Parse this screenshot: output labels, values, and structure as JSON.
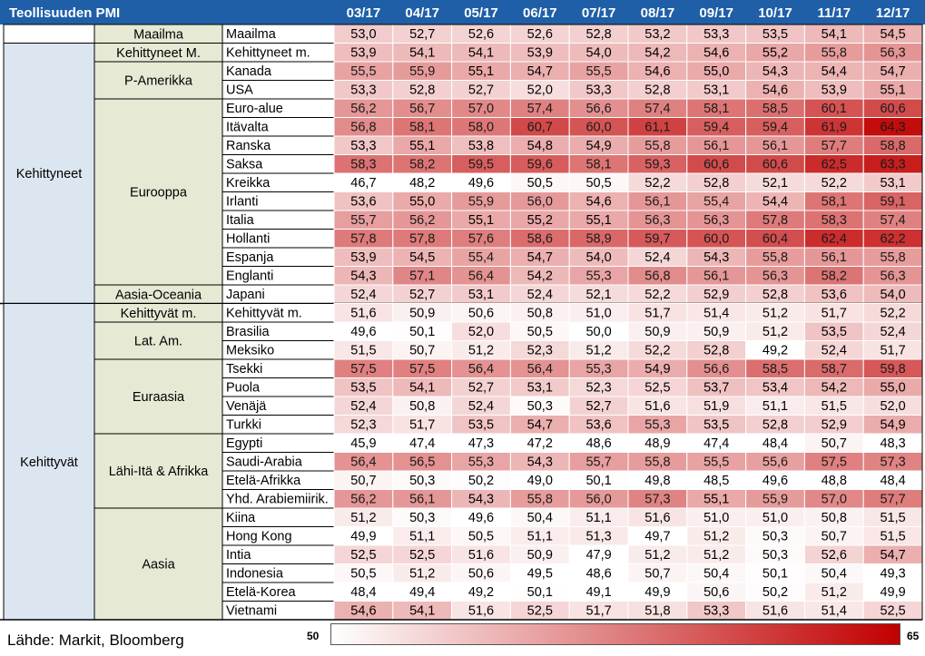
{
  "chart_data": {
    "type": "heatmap",
    "title": "Teollisuuden PMI",
    "columns": [
      "03/17",
      "04/17",
      "05/17",
      "06/17",
      "07/17",
      "08/17",
      "09/17",
      "10/17",
      "11/17",
      "12/17"
    ],
    "groups": [
      {
        "label": "Kehittyneet",
        "regions": [
          {
            "label": "Maailma",
            "rows": [
              {
                "name": "Maailma",
                "values": [
                  53.0,
                  52.7,
                  52.6,
                  52.6,
                  52.8,
                  53.2,
                  53.3,
                  53.5,
                  54.1,
                  54.5
                ]
              }
            ]
          },
          {
            "label": "Kehittyneet M.",
            "rows": [
              {
                "name": "Kehittyneet m.",
                "values": [
                  53.9,
                  54.1,
                  54.1,
                  53.9,
                  54.0,
                  54.2,
                  54.6,
                  55.2,
                  55.8,
                  56.3
                ]
              }
            ]
          },
          {
            "label": "P-Amerikka",
            "rows": [
              {
                "name": "Kanada",
                "values": [
                  55.5,
                  55.9,
                  55.1,
                  54.7,
                  55.5,
                  54.6,
                  55.0,
                  54.3,
                  54.4,
                  54.7
                ]
              },
              {
                "name": "USA",
                "values": [
                  53.3,
                  52.8,
                  52.7,
                  52.0,
                  53.3,
                  52.8,
                  53.1,
                  54.6,
                  53.9,
                  55.1
                ]
              }
            ]
          },
          {
            "label": "Eurooppa",
            "rows": [
              {
                "name": "Euro-alue",
                "values": [
                  56.2,
                  56.7,
                  57.0,
                  57.4,
                  56.6,
                  57.4,
                  58.1,
                  58.5,
                  60.1,
                  60.6
                ]
              },
              {
                "name": "Itävalta",
                "values": [
                  56.8,
                  58.1,
                  58.0,
                  60.7,
                  60.0,
                  61.1,
                  59.4,
                  59.4,
                  61.9,
                  64.3
                ]
              },
              {
                "name": "Ranska",
                "values": [
                  53.3,
                  55.1,
                  53.8,
                  54.8,
                  54.9,
                  55.8,
                  56.1,
                  56.1,
                  57.7,
                  58.8
                ]
              },
              {
                "name": "Saksa",
                "values": [
                  58.3,
                  58.2,
                  59.5,
                  59.6,
                  58.1,
                  59.3,
                  60.6,
                  60.6,
                  62.5,
                  63.3
                ]
              },
              {
                "name": "Kreikka",
                "values": [
                  46.7,
                  48.2,
                  49.6,
                  50.5,
                  50.5,
                  52.2,
                  52.8,
                  52.1,
                  52.2,
                  53.1
                ]
              },
              {
                "name": "Irlanti",
                "values": [
                  53.6,
                  55.0,
                  55.9,
                  56.0,
                  54.6,
                  56.1,
                  55.4,
                  54.4,
                  58.1,
                  59.1
                ]
              },
              {
                "name": "Italia",
                "values": [
                  55.7,
                  56.2,
                  55.1,
                  55.2,
                  55.1,
                  56.3,
                  56.3,
                  57.8,
                  58.3,
                  57.4
                ]
              },
              {
                "name": "Hollanti",
                "values": [
                  57.8,
                  57.8,
                  57.6,
                  58.6,
                  58.9,
                  59.7,
                  60.0,
                  60.4,
                  62.4,
                  62.2
                ]
              },
              {
                "name": "Espanja",
                "values": [
                  53.9,
                  54.5,
                  55.4,
                  54.7,
                  54.0,
                  52.4,
                  54.3,
                  55.8,
                  56.1,
                  55.8
                ]
              },
              {
                "name": "Englanti",
                "values": [
                  54.3,
                  57.1,
                  56.4,
                  54.2,
                  55.3,
                  56.8,
                  56.1,
                  56.3,
                  58.2,
                  56.3
                ]
              }
            ]
          },
          {
            "label": "Aasia-Oceania",
            "rows": [
              {
                "name": "Japani",
                "values": [
                  52.4,
                  52.7,
                  53.1,
                  52.4,
                  52.1,
                  52.2,
                  52.9,
                  52.8,
                  53.6,
                  54.0
                ]
              }
            ]
          }
        ]
      },
      {
        "label": "Kehittyvät",
        "regions": [
          {
            "label": "Kehittyvät m.",
            "rows": [
              {
                "name": "Kehittyvät m.",
                "values": [
                  51.6,
                  50.9,
                  50.6,
                  50.8,
                  51.0,
                  51.7,
                  51.4,
                  51.2,
                  51.7,
                  52.2
                ]
              }
            ]
          },
          {
            "label": "Lat. Am.",
            "rows": [
              {
                "name": "Brasilia",
                "values": [
                  49.6,
                  50.1,
                  52.0,
                  50.5,
                  50.0,
                  50.9,
                  50.9,
                  51.2,
                  53.5,
                  52.4
                ]
              },
              {
                "name": "Meksiko",
                "values": [
                  51.5,
                  50.7,
                  51.2,
                  52.3,
                  51.2,
                  52.2,
                  52.8,
                  49.2,
                  52.4,
                  51.7
                ]
              }
            ]
          },
          {
            "label": "Euraasia",
            "rows": [
              {
                "name": "Tsekki",
                "values": [
                  57.5,
                  57.5,
                  56.4,
                  56.4,
                  55.3,
                  54.9,
                  56.6,
                  58.5,
                  58.7,
                  59.8
                ]
              },
              {
                "name": "Puola",
                "values": [
                  53.5,
                  54.1,
                  52.7,
                  53.1,
                  52.3,
                  52.5,
                  53.7,
                  53.4,
                  54.2,
                  55.0
                ]
              },
              {
                "name": "Venäjä",
                "values": [
                  52.4,
                  50.8,
                  52.4,
                  50.3,
                  52.7,
                  51.6,
                  51.9,
                  51.1,
                  51.5,
                  52.0
                ]
              },
              {
                "name": "Turkki",
                "values": [
                  52.3,
                  51.7,
                  53.5,
                  54.7,
                  53.6,
                  55.3,
                  53.5,
                  52.8,
                  52.9,
                  54.9
                ]
              }
            ]
          },
          {
            "label": "Lähi-Itä & Afrikka",
            "rows": [
              {
                "name": "Egypti",
                "values": [
                  45.9,
                  47.4,
                  47.3,
                  47.2,
                  48.6,
                  48.9,
                  47.4,
                  48.4,
                  50.7,
                  48.3
                ]
              },
              {
                "name": "Saudi-Arabia",
                "values": [
                  56.4,
                  56.5,
                  55.3,
                  54.3,
                  55.7,
                  55.8,
                  55.5,
                  55.6,
                  57.5,
                  57.3
                ]
              },
              {
                "name": "Etelä-Afrikka",
                "values": [
                  50.7,
                  50.3,
                  50.2,
                  49.0,
                  50.1,
                  49.8,
                  48.5,
                  49.6,
                  48.8,
                  48.4
                ]
              },
              {
                "name": "Yhd. Arabiemiirik.",
                "values": [
                  56.2,
                  56.1,
                  54.3,
                  55.8,
                  56.0,
                  57.3,
                  55.1,
                  55.9,
                  57.0,
                  57.7
                ]
              }
            ]
          },
          {
            "label": "Aasia",
            "rows": [
              {
                "name": "Kiina",
                "values": [
                  51.2,
                  50.3,
                  49.6,
                  50.4,
                  51.1,
                  51.6,
                  51.0,
                  51.0,
                  50.8,
                  51.5
                ]
              },
              {
                "name": "Hong Kong",
                "values": [
                  49.9,
                  51.1,
                  50.5,
                  51.1,
                  51.3,
                  49.7,
                  51.2,
                  50.3,
                  50.7,
                  51.5
                ]
              },
              {
                "name": "Intia",
                "values": [
                  52.5,
                  52.5,
                  51.6,
                  50.9,
                  47.9,
                  51.2,
                  51.2,
                  50.3,
                  52.6,
                  54.7
                ]
              },
              {
                "name": "Indonesia",
                "values": [
                  50.5,
                  51.2,
                  50.6,
                  49.5,
                  48.6,
                  50.7,
                  50.4,
                  50.1,
                  50.4,
                  49.3
                ]
              },
              {
                "name": "Etelä-Korea",
                "values": [
                  48.4,
                  49.4,
                  49.2,
                  50.1,
                  49.1,
                  49.9,
                  50.6,
                  50.2,
                  51.2,
                  49.9
                ]
              },
              {
                "name": "Vietnami",
                "values": [
                  54.6,
                  54.1,
                  51.6,
                  52.5,
                  51.7,
                  51.8,
                  53.3,
                  51.6,
                  51.4,
                  52.5
                ]
              }
            ]
          }
        ]
      }
    ],
    "color_scale": {
      "min": 50,
      "max": 65,
      "min_color": "#ffffff",
      "max_color": "#c00000"
    },
    "source": "Lähde: Markit, Bloomberg"
  },
  "colors": {
    "header": "#1f5fa8",
    "group_fill": "#dce6f1",
    "region_fill": "#e6ead5",
    "border": "#000000"
  }
}
